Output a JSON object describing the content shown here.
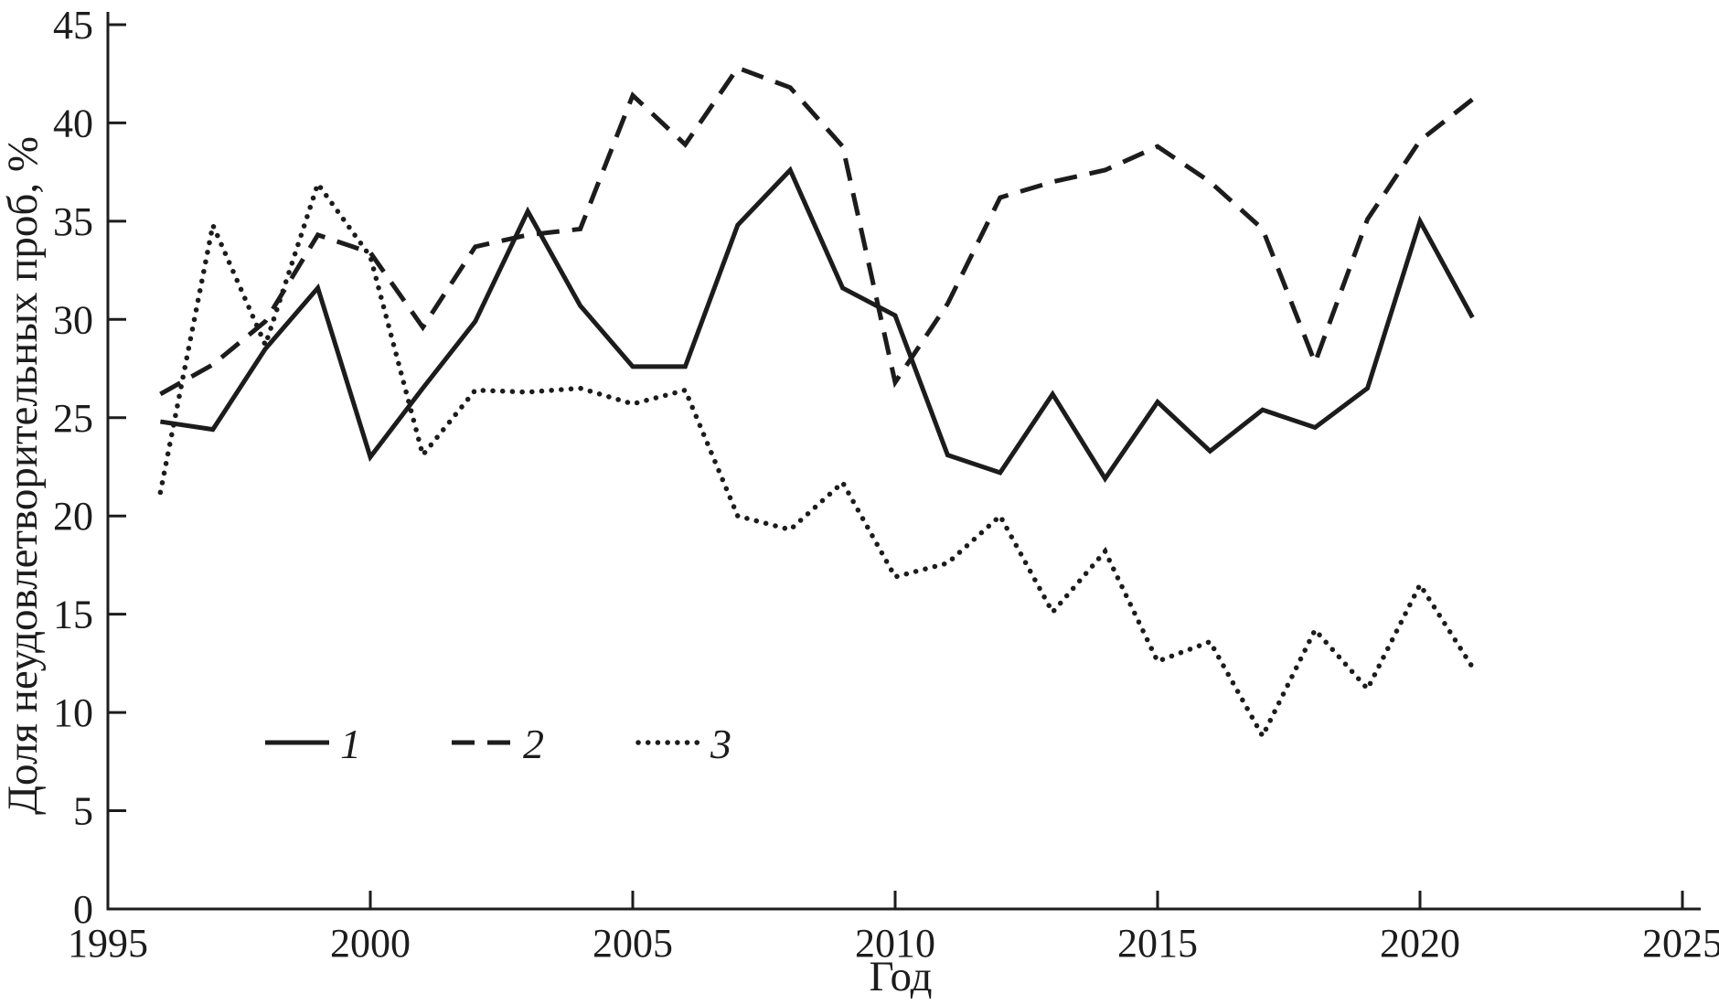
{
  "figure": {
    "background": "#ffffff",
    "line_color": "#1c1c1c"
  },
  "y_axis": {
    "title": "Доля неудовлетворительных проб, %",
    "ticks": [
      0,
      5,
      10,
      15,
      20,
      25,
      30,
      35,
      40,
      45
    ],
    "min": 0,
    "max": 45
  },
  "x_axis": {
    "title": "Год",
    "ticks": [
      1995,
      2000,
      2005,
      2010,
      2015,
      2020,
      2025
    ],
    "min": 1995,
    "max": 2025
  },
  "legend": [
    {
      "label": "1",
      "style": "solid"
    },
    {
      "label": "2",
      "style": "dashed"
    },
    {
      "label": "3",
      "style": "dotted"
    }
  ],
  "chart_data": {
    "type": "line",
    "title": "",
    "xlabel": "Год",
    "ylabel": "Доля неудовлетворительных проб, %",
    "xlim": [
      1995,
      2025
    ],
    "ylim": [
      0,
      45
    ],
    "grid": false,
    "legend_position": "inside-lower-left",
    "x": [
      1996,
      1997,
      1998,
      1999,
      2000,
      2001,
      2002,
      2003,
      2004,
      2005,
      2006,
      2007,
      2008,
      2009,
      2010,
      2011,
      2012,
      2013,
      2014,
      2015,
      2016,
      2017,
      2018,
      2019,
      2020,
      2021
    ],
    "series": [
      {
        "name": "1",
        "style": "solid",
        "values": [
          24.8,
          24.4,
          28.5,
          31.6,
          23.0,
          26.5,
          29.9,
          35.5,
          30.7,
          27.6,
          27.6,
          34.8,
          37.6,
          31.6,
          30.2,
          23.1,
          22.2,
          26.2,
          21.9,
          25.8,
          23.3,
          25.4,
          24.5,
          26.5,
          35.0,
          30.1
        ]
      },
      {
        "name": "2",
        "style": "dashed",
        "values": [
          26.2,
          27.7,
          29.9,
          34.3,
          33.4,
          29.6,
          33.7,
          34.3,
          34.6,
          41.4,
          38.9,
          42.8,
          41.8,
          38.8,
          26.8,
          30.8,
          36.2,
          37.0,
          37.6,
          38.8,
          37.0,
          34.6,
          27.8,
          35.1,
          39.1,
          41.2
        ]
      },
      {
        "name": "3",
        "style": "dotted",
        "values": [
          21.2,
          34.8,
          28.7,
          36.9,
          33.2,
          23.1,
          26.4,
          26.3,
          26.5,
          25.7,
          26.4,
          20.0,
          19.3,
          21.7,
          16.9,
          17.6,
          20.0,
          15.1,
          18.2,
          12.6,
          13.6,
          8.8,
          14.2,
          11.2,
          16.5,
          12.3
        ]
      }
    ]
  }
}
